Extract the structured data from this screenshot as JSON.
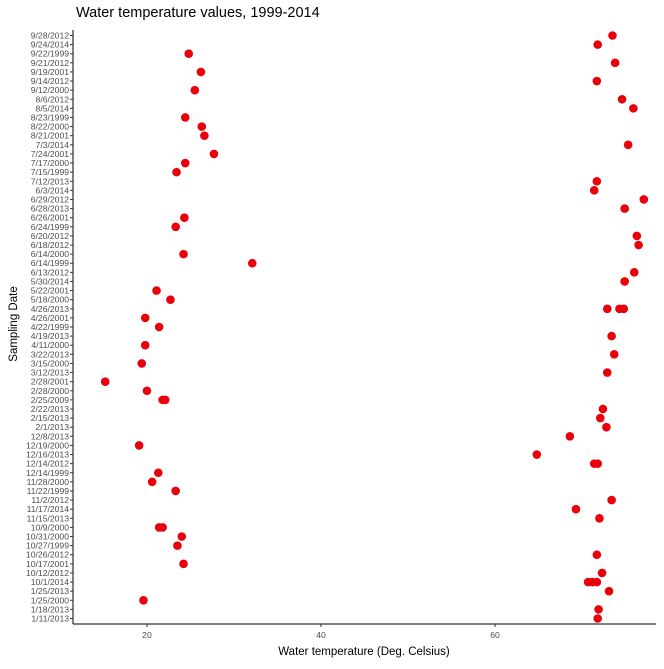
{
  "chart_data": {
    "type": "scatter",
    "title": "Water temperature values, 1999-2014",
    "xlabel": "Water temperature (Deg. Celsius)",
    "ylabel": "Sampling Date",
    "xlim": [
      11.5,
      78.5
    ],
    "xticks": [
      20,
      40,
      60
    ],
    "grid": false,
    "legend": "none",
    "point_color": "#e8000b",
    "categories": [
      "9/28/2012",
      "9/24/2014",
      "9/22/1999",
      "9/21/2012",
      "9/19/2001",
      "9/14/2012",
      "9/12/2000",
      "8/6/2012",
      "8/5/2014",
      "8/23/1999",
      "8/22/2000",
      "8/21/2001",
      "7/3/2014",
      "7/24/2001",
      "7/17/2000",
      "7/15/1999",
      "7/12/2013",
      "6/3/2014",
      "6/29/2012",
      "6/28/2013",
      "6/26/2001",
      "6/24/1999",
      "6/20/2012",
      "6/18/2012",
      "6/14/2000",
      "6/14/1999",
      "6/13/2012",
      "5/30/2014",
      "5/22/2001",
      "5/18/2000",
      "4/26/2013",
      "4/26/2001",
      "4/22/1999",
      "4/19/2013",
      "4/11/2000",
      "3/22/2013",
      "3/15/2000",
      "3/12/2013",
      "2/28/2001",
      "2/28/2000",
      "2/25/2009",
      "2/22/2013",
      "2/15/2013",
      "2/1/2013",
      "12/8/2013",
      "12/19/2000",
      "12/16/2013",
      "12/14/2012",
      "12/14/1999",
      "11/28/2000",
      "11/22/1999",
      "11/2/2012",
      "11/17/2014",
      "11/15/2013",
      "10/9/2000",
      "10/31/2000",
      "10/27/1999",
      "10/26/2012",
      "10/17/2001",
      "10/12/2012",
      "10/1/2014",
      "1/25/2013",
      "1/25/2000",
      "1/18/2013",
      "1/11/2013"
    ],
    "points": [
      {
        "date": "9/28/2012",
        "values": [
          73.5
        ]
      },
      {
        "date": "9/24/2014",
        "values": [
          71.8
        ]
      },
      {
        "date": "9/22/1999",
        "values": [
          24.8
        ]
      },
      {
        "date": "9/21/2012",
        "values": [
          73.8
        ]
      },
      {
        "date": "9/19/2001",
        "values": [
          26.2
        ]
      },
      {
        "date": "9/14/2012",
        "values": [
          71.7
        ]
      },
      {
        "date": "9/12/2000",
        "values": [
          25.5
        ]
      },
      {
        "date": "8/6/2012",
        "values": [
          74.6
        ]
      },
      {
        "date": "8/5/2014",
        "values": [
          75.9
        ]
      },
      {
        "date": "8/23/1999",
        "values": [
          24.4
        ]
      },
      {
        "date": "8/22/2000",
        "values": [
          26.3
        ]
      },
      {
        "date": "8/21/2001",
        "values": [
          26.6
        ]
      },
      {
        "date": "7/3/2014",
        "values": [
          75.3
        ]
      },
      {
        "date": "7/24/2001",
        "values": [
          27.7
        ]
      },
      {
        "date": "7/17/2000",
        "values": [
          24.4
        ]
      },
      {
        "date": "7/15/1999",
        "values": [
          23.4
        ]
      },
      {
        "date": "7/12/2013",
        "values": [
          71.7
        ]
      },
      {
        "date": "6/3/2014",
        "values": [
          71.4
        ]
      },
      {
        "date": "6/29/2012",
        "values": [
          77.1
        ]
      },
      {
        "date": "6/28/2013",
        "values": [
          74.9
        ]
      },
      {
        "date": "6/26/2001",
        "values": [
          24.3
        ]
      },
      {
        "date": "6/24/1999",
        "values": [
          23.3
        ]
      },
      {
        "date": "6/20/2012",
        "values": [
          76.3
        ]
      },
      {
        "date": "6/18/2012",
        "values": [
          76.5
        ]
      },
      {
        "date": "6/14/2000",
        "values": [
          24.2
        ]
      },
      {
        "date": "6/14/1999",
        "values": [
          32.1
        ]
      },
      {
        "date": "6/13/2012",
        "values": [
          76.0
        ]
      },
      {
        "date": "5/30/2014",
        "values": [
          74.9
        ]
      },
      {
        "date": "5/22/2001",
        "values": [
          21.1
        ]
      },
      {
        "date": "5/18/2000",
        "values": [
          22.7
        ]
      },
      {
        "date": "4/26/2013",
        "values": [
          72.9,
          74.3,
          74.8
        ]
      },
      {
        "date": "4/26/2001",
        "values": [
          19.8
        ]
      },
      {
        "date": "4/22/1999",
        "values": [
          21.4
        ]
      },
      {
        "date": "4/19/2013",
        "values": [
          73.4
        ]
      },
      {
        "date": "4/11/2000",
        "values": [
          19.8
        ]
      },
      {
        "date": "3/22/2013",
        "values": [
          73.7
        ]
      },
      {
        "date": "3/15/2000",
        "values": [
          19.4
        ]
      },
      {
        "date": "3/12/2013",
        "values": [
          72.9
        ]
      },
      {
        "date": "2/28/2001",
        "values": [
          15.2
        ]
      },
      {
        "date": "2/28/2000",
        "values": [
          20.0
        ]
      },
      {
        "date": "2/25/2009",
        "values": [
          21.8,
          22.1
        ]
      },
      {
        "date": "2/22/2013",
        "values": [
          72.4
        ]
      },
      {
        "date": "2/15/2013",
        "values": [
          72.1
        ]
      },
      {
        "date": "2/1/2013",
        "values": [
          72.8
        ]
      },
      {
        "date": "12/8/2013",
        "values": [
          68.6
        ]
      },
      {
        "date": "12/19/2000",
        "values": [
          19.1
        ]
      },
      {
        "date": "12/16/2013",
        "values": [
          64.8
        ]
      },
      {
        "date": "12/14/2012",
        "values": [
          71.4,
          71.8
        ]
      },
      {
        "date": "12/14/1999",
        "values": [
          21.3
        ]
      },
      {
        "date": "11/28/2000",
        "values": [
          20.6
        ]
      },
      {
        "date": "11/22/1999",
        "values": [
          23.3
        ]
      },
      {
        "date": "11/2/2012",
        "values": [
          73.4
        ]
      },
      {
        "date": "11/17/2014",
        "values": [
          69.3
        ]
      },
      {
        "date": "11/15/2013",
        "values": [
          72.0
        ]
      },
      {
        "date": "10/9/2000",
        "values": [
          21.4,
          21.8
        ]
      },
      {
        "date": "10/31/2000",
        "values": [
          24.0
        ]
      },
      {
        "date": "10/27/1999",
        "values": [
          23.5
        ]
      },
      {
        "date": "10/26/2012",
        "values": [
          71.7
        ]
      },
      {
        "date": "10/17/2001",
        "values": [
          24.2
        ]
      },
      {
        "date": "10/12/2012",
        "values": [
          72.3
        ]
      },
      {
        "date": "10/1/2014",
        "values": [
          70.7,
          71.2,
          71.7
        ]
      },
      {
        "date": "1/25/2013",
        "values": [
          73.1
        ]
      },
      {
        "date": "1/25/2000",
        "values": [
          19.6
        ]
      },
      {
        "date": "1/18/2013",
        "values": [
          71.9
        ]
      },
      {
        "date": "1/11/2013",
        "values": [
          71.8
        ]
      }
    ]
  }
}
